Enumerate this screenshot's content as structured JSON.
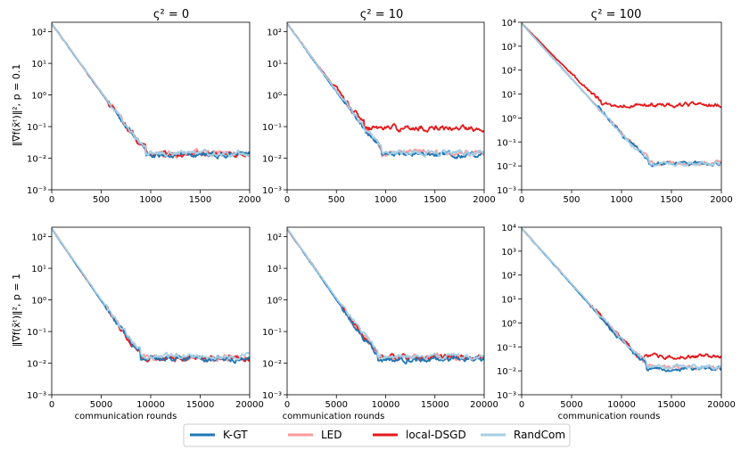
{
  "column_titles": [
    "ς² = 0",
    "ς² = 10",
    "ς² = 100"
  ],
  "row_ylabels": [
    "‖∇f(x̄ᵗ)‖², p = 0.1",
    "‖∇f(x̄ᵗ)‖², p = 1"
  ],
  "xlabel": "communication rounds",
  "colors": {
    "K-GT": "#1f77b4",
    "LED": "#fa9a9a",
    "local-DSGD": "#e41a1c",
    "RandCom": "#a6cee3"
  },
  "legend": [
    "K-GT",
    "LED",
    "local-DSGD",
    "RandCom"
  ],
  "chart_data": [
    {
      "type": "line",
      "title": "ς² = 0",
      "row": 0,
      "col": 0,
      "xlim": [
        0,
        2000
      ],
      "ylim_log10": [
        -3,
        2.3
      ],
      "xticks": [
        0,
        500,
        1000,
        1500,
        2000
      ],
      "yticks_exp": [
        -3,
        -2,
        -1,
        0,
        1,
        2
      ],
      "series": [
        {
          "name": "K-GT",
          "start": 180,
          "switch_x": 950,
          "floor": 0.013
        },
        {
          "name": "LED",
          "start": 180,
          "switch_x": 950,
          "floor": 0.014
        },
        {
          "name": "local-DSGD",
          "start": 180,
          "switch_x": 950,
          "floor": 0.013
        },
        {
          "name": "RandCom",
          "start": 180,
          "switch_x": 950,
          "floor": 0.014
        }
      ]
    },
    {
      "type": "line",
      "title": "ς² = 10",
      "row": 0,
      "col": 1,
      "xlim": [
        0,
        2000
      ],
      "ylim_log10": [
        -3,
        2.3
      ],
      "xticks": [
        0,
        500,
        1000,
        1500,
        2000
      ],
      "yticks_exp": [
        -3,
        -2,
        -1,
        0,
        1,
        2
      ],
      "series": [
        {
          "name": "K-GT",
          "start": 180,
          "switch_x": 960,
          "floor": 0.013
        },
        {
          "name": "LED",
          "start": 180,
          "switch_x": 960,
          "floor": 0.015
        },
        {
          "name": "local-DSGD",
          "start": 180,
          "switch_x": 780,
          "floor": 0.09
        },
        {
          "name": "RandCom",
          "start": 180,
          "switch_x": 960,
          "floor": 0.015
        }
      ]
    },
    {
      "type": "line",
      "title": "ς² = 100",
      "row": 0,
      "col": 2,
      "xlim": [
        0,
        2000
      ],
      "ylim_log10": [
        -3,
        4
      ],
      "xticks": [
        0,
        500,
        1000,
        1500,
        2000
      ],
      "yticks_exp": [
        -3,
        -2,
        -1,
        0,
        1,
        2,
        3,
        4
      ],
      "series": [
        {
          "name": "K-GT",
          "start": 9000,
          "switch_x": 1270,
          "floor": 0.012
        },
        {
          "name": "LED",
          "start": 9000,
          "switch_x": 1270,
          "floor": 0.013
        },
        {
          "name": "local-DSGD",
          "start": 9000,
          "switch_x": 800,
          "floor": 3.5
        },
        {
          "name": "RandCom",
          "start": 9000,
          "switch_x": 1270,
          "floor": 0.012
        }
      ]
    },
    {
      "type": "line",
      "title": "",
      "row": 1,
      "col": 0,
      "xlim": [
        0,
        20000
      ],
      "ylim_log10": [
        -3,
        2.3
      ],
      "xticks": [
        0,
        5000,
        10000,
        15000,
        20000
      ],
      "yticks_exp": [
        -3,
        -2,
        -1,
        0,
        1,
        2
      ],
      "series": [
        {
          "name": "K-GT",
          "start": 180,
          "switch_x": 9000,
          "floor": 0.014
        },
        {
          "name": "LED",
          "start": 180,
          "switch_x": 9000,
          "floor": 0.015
        },
        {
          "name": "local-DSGD",
          "start": 180,
          "switch_x": 9000,
          "floor": 0.014
        },
        {
          "name": "RandCom",
          "start": 180,
          "switch_x": 9000,
          "floor": 0.016
        }
      ]
    },
    {
      "type": "line",
      "title": "",
      "row": 1,
      "col": 1,
      "xlim": [
        0,
        20000
      ],
      "ylim_log10": [
        -3,
        2.3
      ],
      "xticks": [
        0,
        5000,
        10000,
        15000,
        20000
      ],
      "yticks_exp": [
        -3,
        -2,
        -1,
        0,
        1,
        2
      ],
      "series": [
        {
          "name": "K-GT",
          "start": 180,
          "switch_x": 9200,
          "floor": 0.013
        },
        {
          "name": "LED",
          "start": 180,
          "switch_x": 9200,
          "floor": 0.015
        },
        {
          "name": "local-DSGD",
          "start": 180,
          "switch_x": 9200,
          "floor": 0.015
        },
        {
          "name": "RandCom",
          "start": 180,
          "switch_x": 9200,
          "floor": 0.016
        }
      ]
    },
    {
      "type": "line",
      "title": "",
      "row": 1,
      "col": 2,
      "xlim": [
        0,
        20000
      ],
      "ylim_log10": [
        -3,
        4
      ],
      "xticks": [
        0,
        5000,
        10000,
        15000,
        20000
      ],
      "yticks_exp": [
        -3,
        -2,
        -1,
        0,
        1,
        2,
        3,
        4
      ],
      "series": [
        {
          "name": "K-GT",
          "start": 9000,
          "switch_x": 12500,
          "floor": 0.012
        },
        {
          "name": "LED",
          "start": 9000,
          "switch_x": 12500,
          "floor": 0.014
        },
        {
          "name": "local-DSGD",
          "start": 9000,
          "switch_x": 11500,
          "floor": 0.04
        },
        {
          "name": "RandCom",
          "start": 9000,
          "switch_x": 12500,
          "floor": 0.015
        }
      ]
    }
  ]
}
